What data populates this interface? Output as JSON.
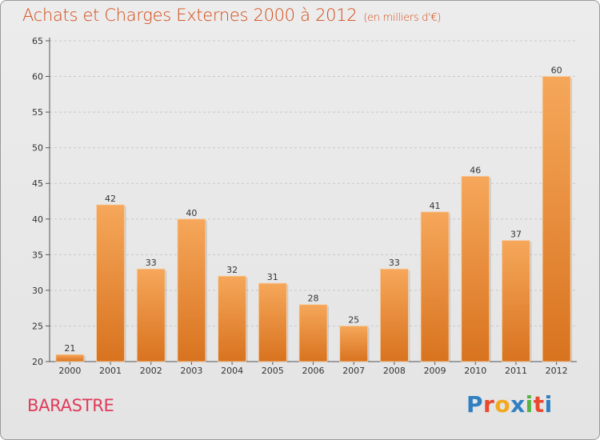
{
  "header": {
    "title": "Achats et Charges Externes 2000 à 2012",
    "subtitle": "(en milliers d'€)"
  },
  "footer": {
    "place": "BARASTRE",
    "brand": "Proxiti",
    "brand_colors": [
      "#2f7fc2",
      "#e8492e",
      "#f2a81d",
      "#2f7fc2",
      "#55b542",
      "#e8492e",
      "#2f7fc2"
    ]
  },
  "chart_data": {
    "type": "bar",
    "title": "Achats et Charges Externes 2000 à 2012",
    "subtitle": "(en milliers d'€)",
    "categories": [
      "2000",
      "2001",
      "2002",
      "2003",
      "2004",
      "2005",
      "2006",
      "2007",
      "2008",
      "2009",
      "2010",
      "2011",
      "2012"
    ],
    "values": [
      21,
      42,
      33,
      40,
      32,
      31,
      28,
      25,
      33,
      41,
      46,
      37,
      60
    ],
    "ylim": [
      20,
      65
    ],
    "yticks": [
      20,
      25,
      30,
      35,
      40,
      45,
      50,
      55,
      60,
      65
    ],
    "grid": true,
    "bar_color_light": "#f6a75a",
    "bar_color_dark": "#d8731f",
    "xlabel": "",
    "ylabel": ""
  }
}
